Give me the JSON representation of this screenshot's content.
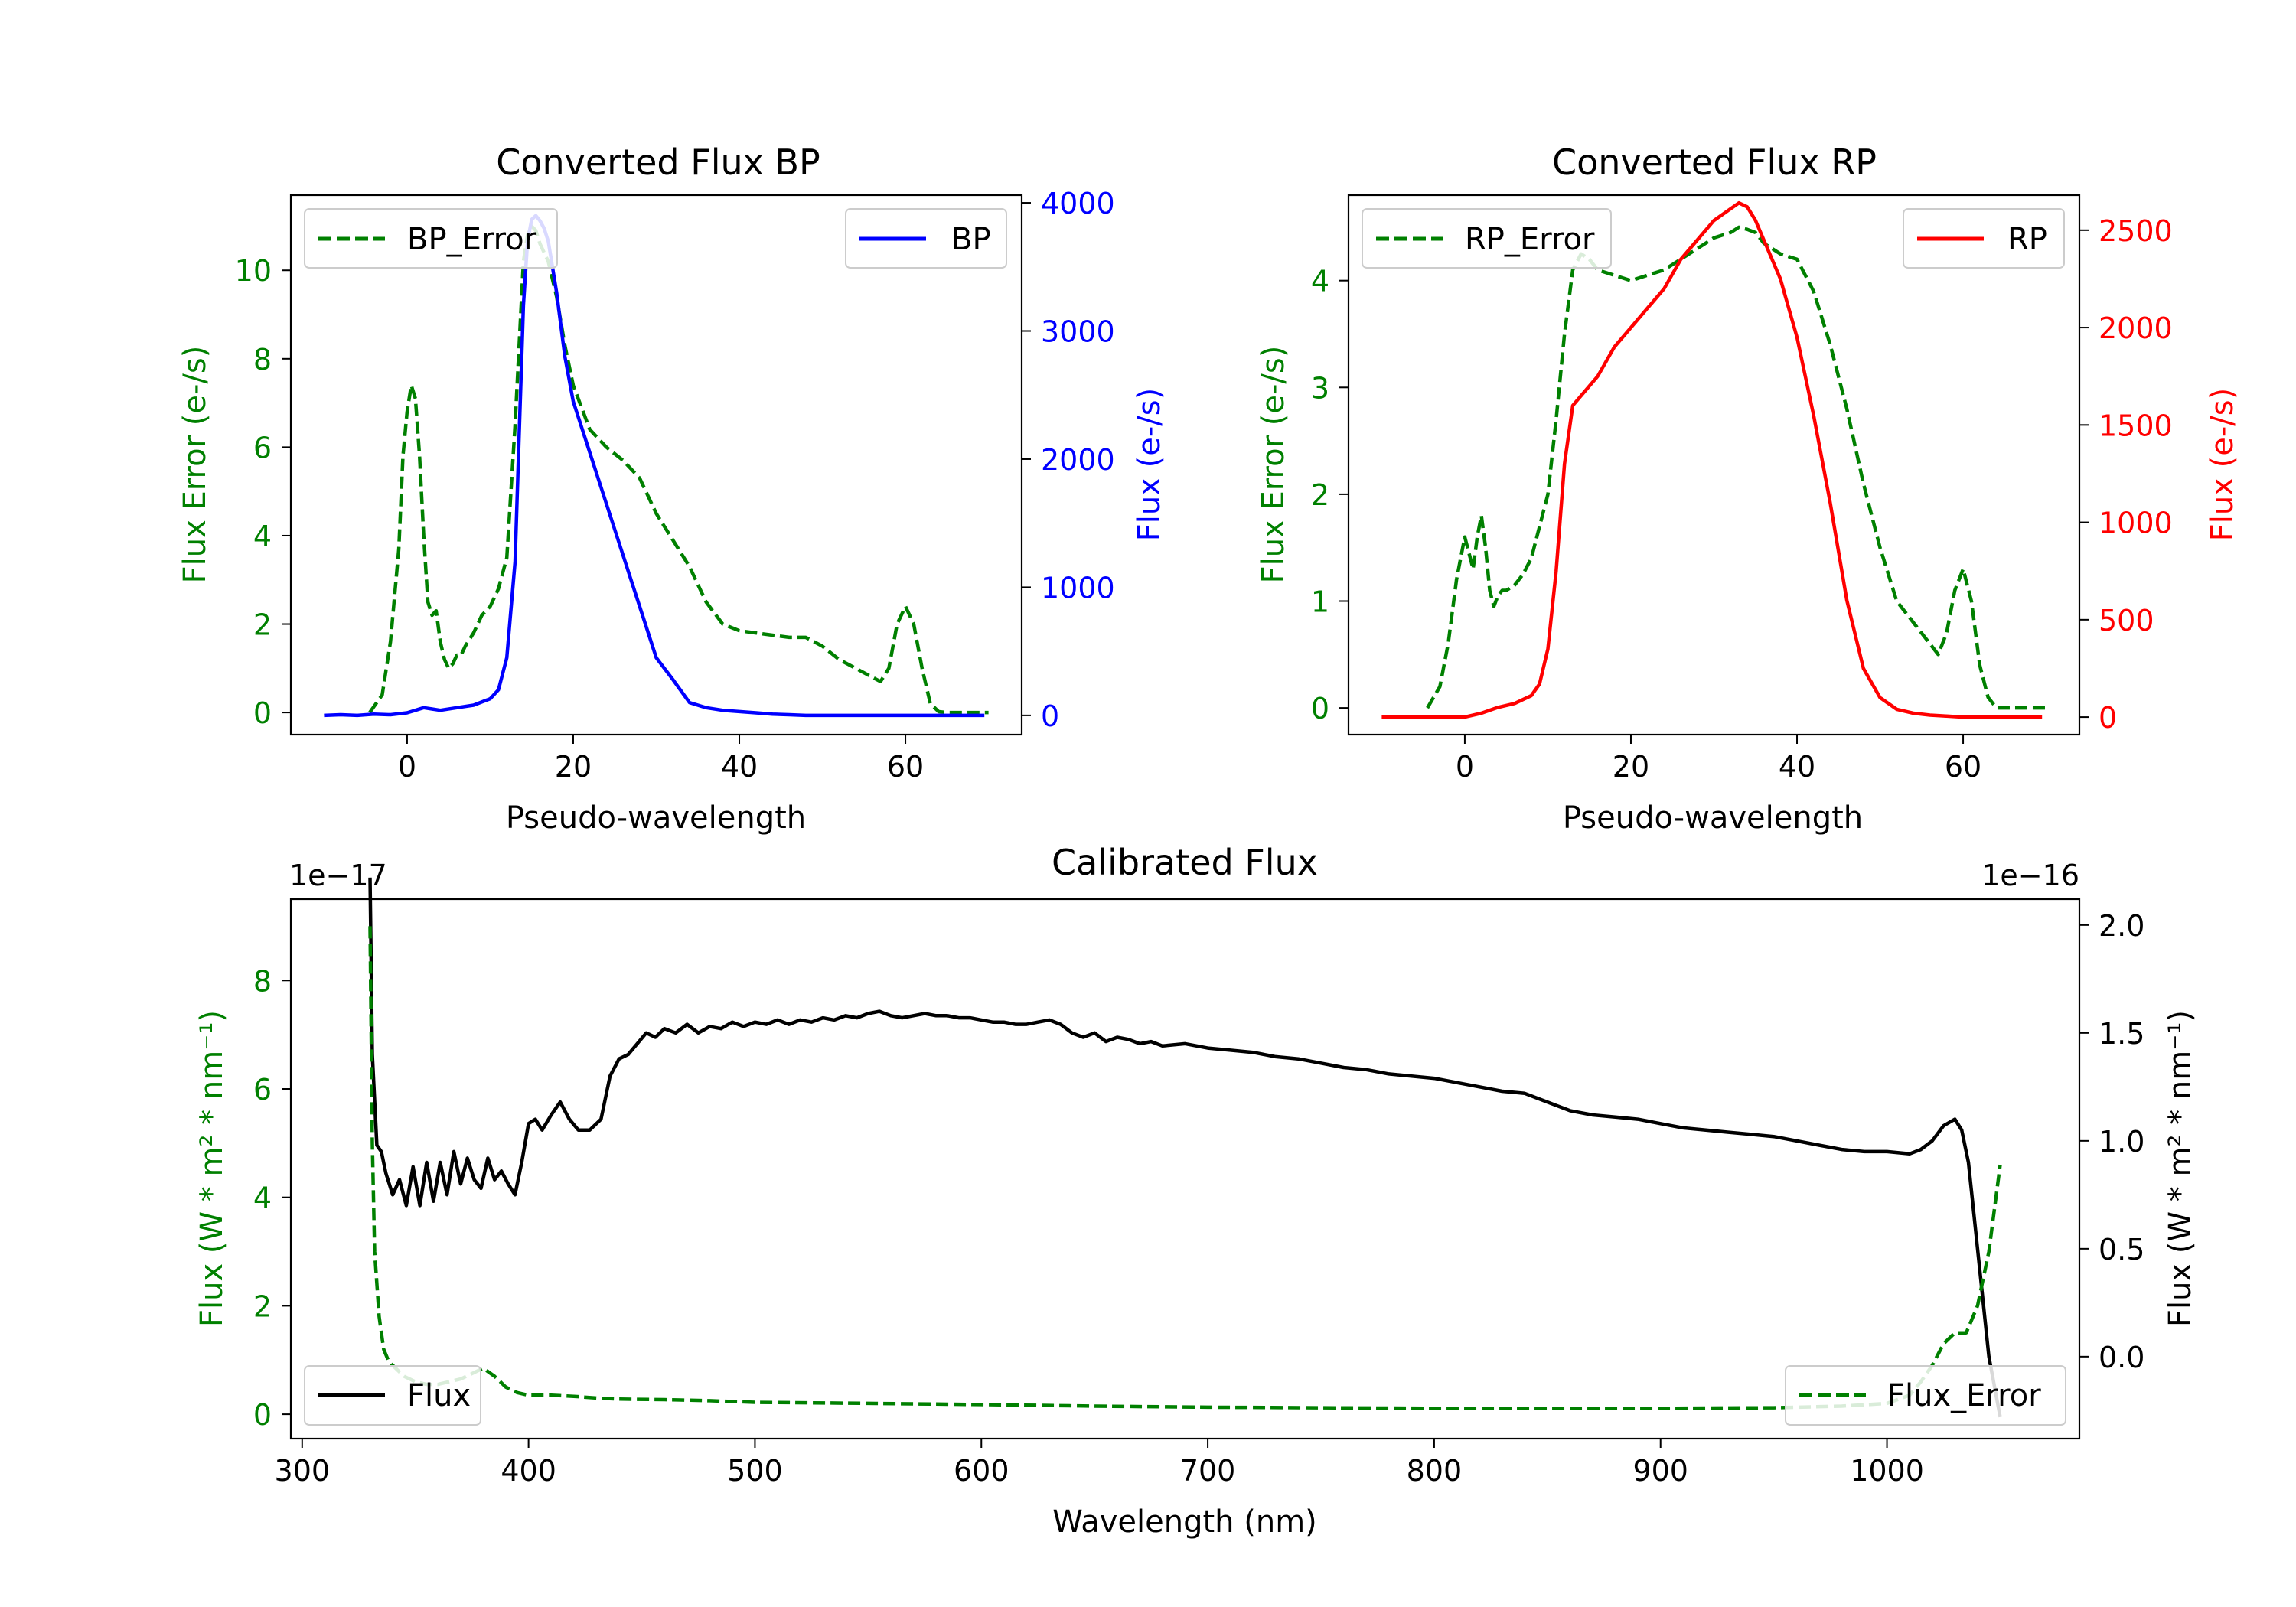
{
  "colors": {
    "bp": "#0000ff",
    "rp": "#ff0000",
    "error": "#008000",
    "flux": "#000000"
  },
  "chart_data": [
    {
      "type": "line",
      "title": "Converted Flux BP",
      "xlabel": "Pseudo-wavelength",
      "ylabel_left": "Flux Error (e-/s)",
      "ylabel_right": "Flux (e-/s)",
      "xlim": [
        -14,
        74
      ],
      "ylim_left": [
        -0.5,
        11.7
      ],
      "ylim_right": [
        -150,
        4060
      ],
      "xticks": [
        0,
        20,
        40,
        60
      ],
      "yticks_left": [
        0,
        2,
        4,
        6,
        8,
        10
      ],
      "yticks_right": [
        0,
        1000,
        2000,
        3000,
        4000
      ],
      "legend_left": "BP_Error",
      "legend_right": "BP",
      "series": [
        {
          "name": "BP_Error",
          "axis": "left",
          "style": "dashed",
          "color": "#008000",
          "x": [
            -4.5,
            -3,
            -2,
            -1,
            -0.5,
            0,
            0.5,
            1,
            1.5,
            2,
            2.5,
            3,
            3.5,
            4,
            4.5,
            5,
            5.5,
            6,
            6.5,
            7,
            8,
            9,
            10,
            11,
            12,
            13,
            14,
            14.5,
            15,
            15.5,
            16,
            17,
            18,
            19,
            20,
            21,
            22,
            24,
            26,
            28,
            30,
            32,
            34,
            36,
            38,
            40,
            42,
            44,
            46,
            48,
            50,
            52,
            54,
            56,
            57,
            58,
            59,
            60,
            61,
            62,
            63,
            64,
            65,
            66,
            67,
            68,
            69,
            70
          ],
          "y": [
            0,
            0.4,
            1.6,
            3.7,
            5.8,
            6.8,
            7.4,
            7.1,
            5.8,
            4.0,
            2.5,
            2.2,
            2.3,
            1.6,
            1.2,
            1.0,
            1.1,
            1.3,
            1.3,
            1.5,
            1.8,
            2.2,
            2.4,
            2.8,
            3.5,
            6.5,
            10.2,
            10.8,
            11.0,
            10.9,
            10.6,
            10.2,
            9.4,
            8.3,
            7.4,
            6.9,
            6.4,
            6.0,
            5.7,
            5.3,
            4.5,
            3.9,
            3.3,
            2.5,
            2.0,
            1.85,
            1.8,
            1.75,
            1.7,
            1.7,
            1.5,
            1.2,
            1.0,
            0.8,
            0.7,
            1.0,
            2.0,
            2.4,
            2.0,
            1.0,
            0.2,
            0.02,
            0,
            0,
            0,
            0,
            0,
            0
          ]
        },
        {
          "name": "BP",
          "axis": "right",
          "style": "solid",
          "color": "#0000ff",
          "x": [
            -10,
            -8,
            -6,
            -4,
            -2,
            0,
            1,
            2,
            3,
            4,
            6,
            8,
            10,
            11,
            12,
            13,
            13.5,
            14,
            14.5,
            15,
            15.5,
            16,
            16.5,
            17,
            18,
            19,
            20,
            22,
            24,
            26,
            28,
            30,
            32,
            34,
            36,
            38,
            40,
            42,
            44,
            46,
            48,
            50,
            52,
            54,
            56,
            58,
            60,
            62,
            64,
            66,
            68,
            69.5
          ],
          "y": [
            0,
            5,
            0,
            10,
            5,
            20,
            40,
            60,
            50,
            40,
            60,
            80,
            130,
            200,
            450,
            1200,
            2200,
            3200,
            3700,
            3870,
            3900,
            3860,
            3800,
            3700,
            3300,
            2800,
            2450,
            2050,
            1650,
            1250,
            850,
            450,
            280,
            100,
            60,
            40,
            30,
            20,
            10,
            5,
            0,
            0,
            0,
            0,
            0,
            0,
            0,
            0,
            0,
            0,
            0,
            0
          ]
        }
      ]
    },
    {
      "type": "line",
      "title": "Converted Flux RP",
      "xlabel": "Pseudo-wavelength",
      "ylabel_left": "Flux Error (e-/s)",
      "ylabel_right": "Flux (e-/s)",
      "xlim": [
        -14,
        74
      ],
      "ylim_left": [
        -0.25,
        4.8
      ],
      "ylim_right": [
        -90,
        2680
      ],
      "xticks": [
        0,
        20,
        40,
        60
      ],
      "yticks_left": [
        0,
        1,
        2,
        3,
        4
      ],
      "yticks_right": [
        0,
        500,
        1000,
        1500,
        2000,
        2500
      ],
      "legend_left": "RP_Error",
      "legend_right": "RP",
      "series": [
        {
          "name": "RP_Error",
          "axis": "left",
          "style": "dashed",
          "color": "#008000",
          "x": [
            -4.5,
            -3,
            -2,
            -1,
            0,
            0.5,
            1,
            1.5,
            2,
            2.5,
            3,
            3.5,
            4,
            4.5,
            5,
            6,
            7,
            8,
            10,
            11,
            12,
            13,
            14,
            15,
            16,
            18,
            20,
            22,
            24,
            26,
            28,
            30,
            32,
            33,
            34,
            35,
            36,
            38,
            40,
            42,
            44,
            46,
            48,
            50,
            52,
            54,
            56,
            57,
            58,
            59,
            60,
            61,
            62,
            63,
            64,
            65,
            66,
            67,
            68,
            69,
            70
          ],
          "y": [
            0,
            0.2,
            0.6,
            1.2,
            1.6,
            1.45,
            1.3,
            1.6,
            1.8,
            1.5,
            1.1,
            0.95,
            1.05,
            1.1,
            1.1,
            1.15,
            1.25,
            1.4,
            2.0,
            2.7,
            3.5,
            4.1,
            4.25,
            4.2,
            4.1,
            4.05,
            4.0,
            4.05,
            4.1,
            4.2,
            4.3,
            4.4,
            4.45,
            4.5,
            4.48,
            4.45,
            4.35,
            4.25,
            4.2,
            3.9,
            3.4,
            2.8,
            2.1,
            1.5,
            1.0,
            0.8,
            0.6,
            0.5,
            0.7,
            1.1,
            1.3,
            1.0,
            0.4,
            0.1,
            0,
            0,
            0,
            0,
            0,
            0,
            0
          ]
        },
        {
          "name": "RP",
          "axis": "right",
          "style": "solid",
          "color": "#ff0000",
          "x": [
            -10,
            -6,
            -2,
            0,
            2,
            4,
            6,
            8,
            9,
            10,
            11,
            12,
            13,
            14,
            15,
            16,
            18,
            20,
            22,
            24,
            26,
            28,
            30,
            32,
            33,
            34,
            35,
            36,
            38,
            40,
            42,
            44,
            46,
            48,
            50,
            52,
            54,
            56,
            58,
            60,
            62,
            64,
            66,
            68,
            69.5
          ],
          "y": [
            0,
            0,
            0,
            0,
            20,
            50,
            70,
            110,
            170,
            350,
            750,
            1300,
            1600,
            1650,
            1700,
            1750,
            1900,
            2000,
            2100,
            2200,
            2350,
            2450,
            2550,
            2610,
            2640,
            2620,
            2550,
            2450,
            2250,
            1950,
            1550,
            1100,
            600,
            250,
            100,
            40,
            20,
            10,
            5,
            0,
            0,
            0,
            0,
            0,
            0
          ]
        }
      ]
    },
    {
      "type": "line",
      "title": "Calibrated Flux",
      "xlabel": "Wavelength (nm)",
      "ylabel_left": "Flux (W * m² * nm⁻¹)",
      "ylabel_right": "Flux (W * m² * nm⁻¹)",
      "scale_left": "1e−17",
      "scale_right": "1e−16",
      "xlim": [
        295,
        1085
      ],
      "ylim_left": [
        -0.45,
        9.5
      ],
      "ylim_right": [
        -0.38,
        2.12
      ],
      "xticks": [
        300,
        400,
        500,
        600,
        700,
        800,
        900,
        1000
      ],
      "yticks_left": [
        0,
        2,
        4,
        6,
        8
      ],
      "yticks_right": [
        0.0,
        0.5,
        1.0,
        1.5,
        2.0
      ],
      "legend_left": "Flux",
      "legend_right": "Flux_Error",
      "series": [
        {
          "name": "Flux",
          "axis": "right",
          "style": "solid",
          "color": "#000000",
          "x": [
            330,
            331,
            333,
            335,
            337,
            340,
            343,
            346,
            349,
            352,
            355,
            358,
            361,
            364,
            367,
            370,
            373,
            376,
            379,
            382,
            385,
            388,
            391,
            394,
            397,
            400,
            403,
            406,
            410,
            414,
            418,
            422,
            427,
            432,
            436,
            440,
            444,
            448,
            452,
            456,
            460,
            465,
            470,
            475,
            480,
            485,
            490,
            495,
            500,
            505,
            510,
            515,
            520,
            525,
            530,
            535,
            540,
            545,
            550,
            555,
            560,
            565,
            570,
            575,
            580,
            585,
            590,
            595,
            600,
            605,
            610,
            615,
            620,
            625,
            630,
            635,
            640,
            645,
            650,
            655,
            660,
            665,
            670,
            675,
            680,
            690,
            700,
            710,
            720,
            730,
            740,
            750,
            760,
            770,
            780,
            790,
            800,
            810,
            820,
            830,
            840,
            850,
            860,
            870,
            880,
            890,
            900,
            910,
            920,
            930,
            940,
            950,
            960,
            970,
            980,
            990,
            1000,
            1010,
            1015,
            1020,
            1025,
            1030,
            1033,
            1036,
            1040,
            1045,
            1050
          ],
          "y": [
            2.22,
            1.4,
            0.98,
            0.95,
            0.85,
            0.75,
            0.82,
            0.7,
            0.88,
            0.7,
            0.9,
            0.72,
            0.9,
            0.75,
            0.95,
            0.8,
            0.92,
            0.82,
            0.78,
            0.92,
            0.82,
            0.86,
            0.8,
            0.75,
            0.9,
            1.08,
            1.1,
            1.05,
            1.12,
            1.18,
            1.1,
            1.05,
            1.05,
            1.1,
            1.3,
            1.38,
            1.4,
            1.45,
            1.5,
            1.48,
            1.52,
            1.5,
            1.54,
            1.5,
            1.53,
            1.52,
            1.55,
            1.53,
            1.55,
            1.54,
            1.56,
            1.54,
            1.56,
            1.55,
            1.57,
            1.56,
            1.58,
            1.57,
            1.59,
            1.6,
            1.58,
            1.57,
            1.58,
            1.59,
            1.58,
            1.58,
            1.57,
            1.57,
            1.56,
            1.55,
            1.55,
            1.54,
            1.54,
            1.55,
            1.56,
            1.54,
            1.5,
            1.48,
            1.5,
            1.46,
            1.48,
            1.47,
            1.45,
            1.46,
            1.44,
            1.45,
            1.43,
            1.42,
            1.41,
            1.39,
            1.38,
            1.36,
            1.34,
            1.33,
            1.31,
            1.3,
            1.29,
            1.27,
            1.25,
            1.23,
            1.22,
            1.18,
            1.14,
            1.12,
            1.11,
            1.1,
            1.08,
            1.06,
            1.05,
            1.04,
            1.03,
            1.02,
            1.0,
            0.98,
            0.96,
            0.95,
            0.95,
            0.94,
            0.96,
            1.0,
            1.07,
            1.1,
            1.05,
            0.9,
            0.5,
            0.0,
            -0.28
          ]
        },
        {
          "name": "Flux_Error",
          "axis": "left",
          "style": "dashed",
          "color": "#008000",
          "x": [
            330,
            331,
            332,
            334,
            336,
            338,
            340,
            345,
            350,
            355,
            360,
            365,
            370,
            375,
            380,
            385,
            390,
            395,
            400,
            410,
            420,
            430,
            440,
            460,
            480,
            500,
            550,
            600,
            650,
            700,
            750,
            800,
            850,
            900,
            950,
            980,
            1000,
            1010,
            1015,
            1020,
            1025,
            1030,
            1035,
            1040,
            1045,
            1050
          ],
          "y": [
            9.0,
            5.0,
            3.0,
            1.8,
            1.2,
            1.0,
            0.9,
            0.7,
            0.6,
            0.55,
            0.55,
            0.6,
            0.65,
            0.75,
            0.85,
            0.7,
            0.5,
            0.4,
            0.35,
            0.35,
            0.33,
            0.3,
            0.28,
            0.27,
            0.25,
            0.22,
            0.2,
            0.18,
            0.15,
            0.13,
            0.12,
            0.11,
            0.11,
            0.11,
            0.12,
            0.15,
            0.2,
            0.35,
            0.6,
            0.9,
            1.3,
            1.5,
            1.5,
            2.0,
            3.0,
            4.6
          ]
        }
      ]
    }
  ]
}
